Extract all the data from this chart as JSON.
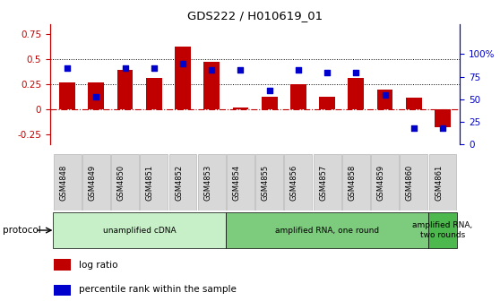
{
  "title": "GDS222 / H010619_01",
  "categories": [
    "GSM4848",
    "GSM4849",
    "GSM4850",
    "GSM4851",
    "GSM4852",
    "GSM4853",
    "GSM4854",
    "GSM4855",
    "GSM4856",
    "GSM4857",
    "GSM4858",
    "GSM4859",
    "GSM4860",
    "GSM4861"
  ],
  "log_ratio": [
    0.27,
    0.27,
    0.39,
    0.31,
    0.63,
    0.47,
    0.02,
    0.13,
    0.25,
    0.13,
    0.31,
    0.2,
    0.12,
    -0.18
  ],
  "percentile": [
    85,
    53,
    85,
    85,
    90,
    83,
    83,
    60,
    83,
    80,
    80,
    55,
    18,
    18
  ],
  "bar_color": "#c00000",
  "dot_color": "#0000cc",
  "ylim_left": [
    -0.35,
    0.85
  ],
  "ylim_right": [
    0,
    133.33
  ],
  "yticks_left": [
    -0.25,
    0.0,
    0.25,
    0.5,
    0.75
  ],
  "ytick_labels_left": [
    "-0.25",
    "0",
    "0.25",
    "0.5",
    "0.75"
  ],
  "yticks_right": [
    0,
    25,
    50,
    75,
    100
  ],
  "ytick_labels_right": [
    "0",
    "25",
    "50",
    "75",
    "100%"
  ],
  "hlines": [
    0.25,
    0.5
  ],
  "protocol_groups": [
    {
      "label": "unamplified cDNA",
      "start": 0,
      "end": 6,
      "color": "#c8f0c8"
    },
    {
      "label": "amplified RNA, one round",
      "start": 6,
      "end": 13,
      "color": "#7dcc7d"
    },
    {
      "label": "amplified RNA,\ntwo rounds",
      "start": 13,
      "end": 14,
      "color": "#4db84d"
    }
  ],
  "legend_log_ratio": "log ratio",
  "legend_percentile": "percentile rank within the sample",
  "protocol_label": "protocol",
  "bar_color_hex": "#c00000",
  "dot_color_hex": "#0000cc"
}
